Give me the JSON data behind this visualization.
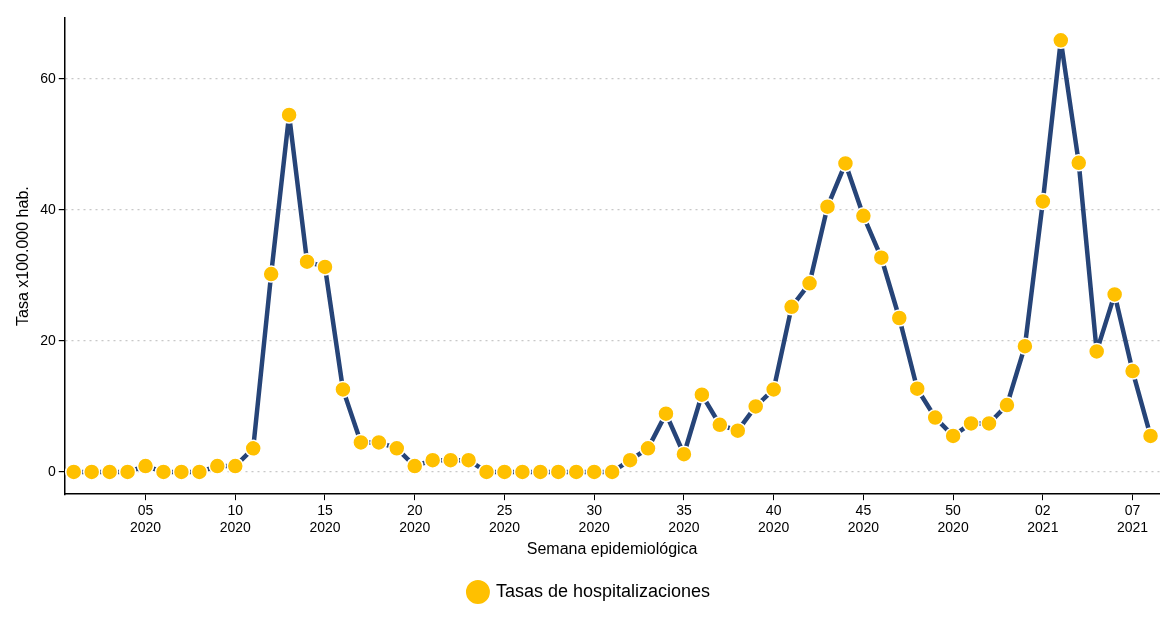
{
  "chart_data": {
    "type": "line",
    "xlabel": "Semana epidemiológica",
    "ylabel": "Tasa x100.000 hab.",
    "categories": [
      null,
      null,
      null,
      null,
      "05 2020",
      null,
      null,
      null,
      null,
      "10 2020",
      null,
      null,
      null,
      null,
      "15 2020",
      null,
      null,
      null,
      null,
      "20 2020",
      null,
      null,
      null,
      null,
      "25 2020",
      null,
      null,
      null,
      null,
      "30 2020",
      null,
      null,
      null,
      null,
      "35 2020",
      null,
      null,
      null,
      null,
      "40 2020",
      null,
      null,
      null,
      null,
      "45 2020",
      null,
      null,
      null,
      null,
      "50 2020",
      null,
      null,
      null,
      null,
      "02 2021",
      null,
      null,
      null,
      null,
      "07 2021",
      null
    ],
    "series": [
      {
        "name": "Tasas de hospitalizaciones",
        "color": "#264478",
        "colors": [
          "#ffc000",
          "#ffc000",
          "#ffc000",
          "#ffc000",
          "#ffc000",
          "#ffc000",
          "#ffc000",
          "#ffc000",
          "#ffc000",
          "#ffc000",
          "#ffc000",
          "#ffc000",
          "#ffc000",
          "#ffc000",
          "#ffc000",
          "#ffc000",
          "#ffc000",
          "#ffc000",
          "#ffc000",
          "#ffc000",
          "#ffc000",
          "#ffc000",
          "#ffc000",
          "#ffc000",
          "#ffc000",
          "#ffc000",
          "#ffc000",
          "#ffc000",
          "#ffc000",
          "#ffc000",
          "#ffc000",
          "#ffc000",
          "#ffc000",
          "#ffc000",
          "#ffc000",
          "#ffc000",
          "#ffc000",
          "#ffc000",
          "#ffc000",
          "#ffc000",
          "#ffc000",
          "#ffc000",
          "#ffc000",
          "#ffc000",
          "#ffc000",
          "#ffc000",
          "#ffc000",
          "#ffc000",
          "#ffc000",
          "#ffc000",
          "#ffc000",
          "#ffc000",
          "#ffc000",
          "#ffc000",
          "#ffc000",
          "#ffc000",
          "#ffc000",
          "#ffc000",
          "#ffc000",
          "#ffc000",
          "#ffc000"
        ],
        "values": [
          0,
          0,
          0,
          0,
          0.9,
          0,
          0,
          0,
          0.9,
          0.9,
          3.6,
          30.2,
          54.5,
          32.1,
          31.3,
          12.6,
          4.5,
          4.5,
          3.6,
          0.9,
          1.8,
          1.8,
          1.8,
          0,
          0,
          0,
          0,
          0,
          0,
          0,
          0,
          1.8,
          3.6,
          8.9,
          2.7,
          11.8,
          7.2,
          6.3,
          10,
          12.6,
          25.2,
          28.8,
          40.5,
          47.1,
          39.1,
          32.7,
          23.5,
          12.7,
          8.3,
          5.5,
          7.4,
          7.4,
          10.2,
          19.2,
          41.3,
          65.9,
          47.2,
          18.4,
          27.1,
          15.4,
          5.5
        ]
      }
    ],
    "ylim": [
      -3.4,
      69.3
    ],
    "yticks": [
      0,
      20,
      40,
      60
    ],
    "grid": "y",
    "legend": "bottom",
    "marker": "circle",
    "line_style": "solid"
  }
}
